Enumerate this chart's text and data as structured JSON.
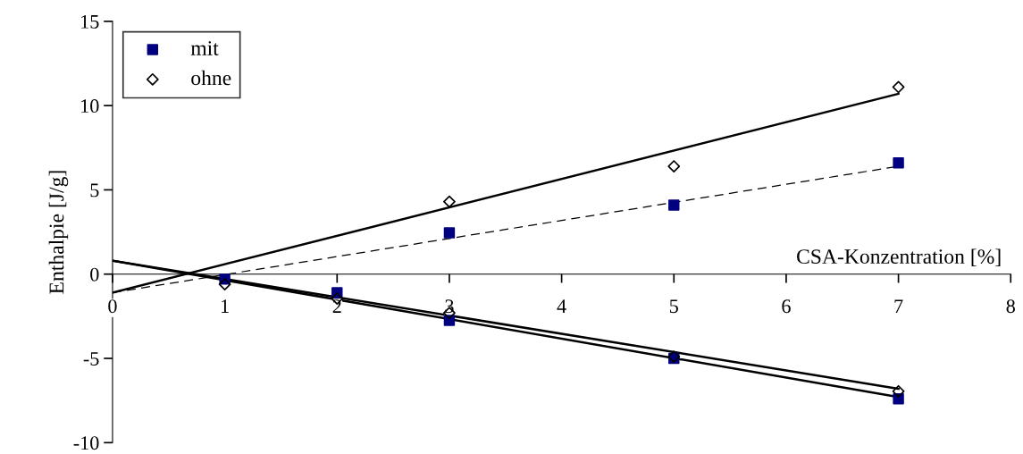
{
  "chart_data": {
    "type": "scatter",
    "xlabel": "CSA-Konzentration [%]",
    "ylabel": "Enthalpie [J/g]",
    "xlim": [
      0,
      8
    ],
    "xticks": [
      0,
      1,
      2,
      3,
      4,
      5,
      6,
      7,
      8
    ],
    "ylim": [
      -10,
      15
    ],
    "yticks": [
      -10,
      -5,
      0,
      5,
      10,
      15
    ],
    "grid": false,
    "legend": "top left",
    "series": [
      {
        "name": "mit",
        "marker": "square",
        "color": "#000080",
        "x": [
          1,
          2,
          3,
          5,
          7,
          3,
          5,
          7
        ],
        "values": [
          -0.3,
          -1.1,
          2.45,
          4.1,
          6.6,
          -2.75,
          -5.0,
          -7.4
        ]
      },
      {
        "name": "ohne",
        "marker": "diamond",
        "color": "#000000",
        "x": [
          1,
          2,
          3,
          5,
          7,
          3,
          5,
          7
        ],
        "values": [
          -0.6,
          -1.45,
          4.3,
          6.4,
          11.1,
          -2.3,
          -4.9,
          -6.95
        ]
      },
      {
        "type": "line",
        "marker": "none",
        "line_style": "solid",
        "color": "#000000",
        "x": [
          0,
          7
        ],
        "values": [
          -1.1,
          10.7
        ]
      },
      {
        "type": "line",
        "marker": "none",
        "line_style": "dashed",
        "color": "#000000",
        "x": [
          0,
          7
        ],
        "values": [
          -1.1,
          6.4
        ]
      },
      {
        "type": "line",
        "marker": "none",
        "line_style": "solid",
        "color": "#000000",
        "x": [
          0,
          7
        ],
        "values": [
          0.8,
          -7.3
        ]
      },
      {
        "type": "line",
        "marker": "none",
        "line_style": "solid",
        "color": "#000000",
        "x": [
          0,
          7
        ],
        "values": [
          0.8,
          -6.8
        ]
      }
    ]
  }
}
